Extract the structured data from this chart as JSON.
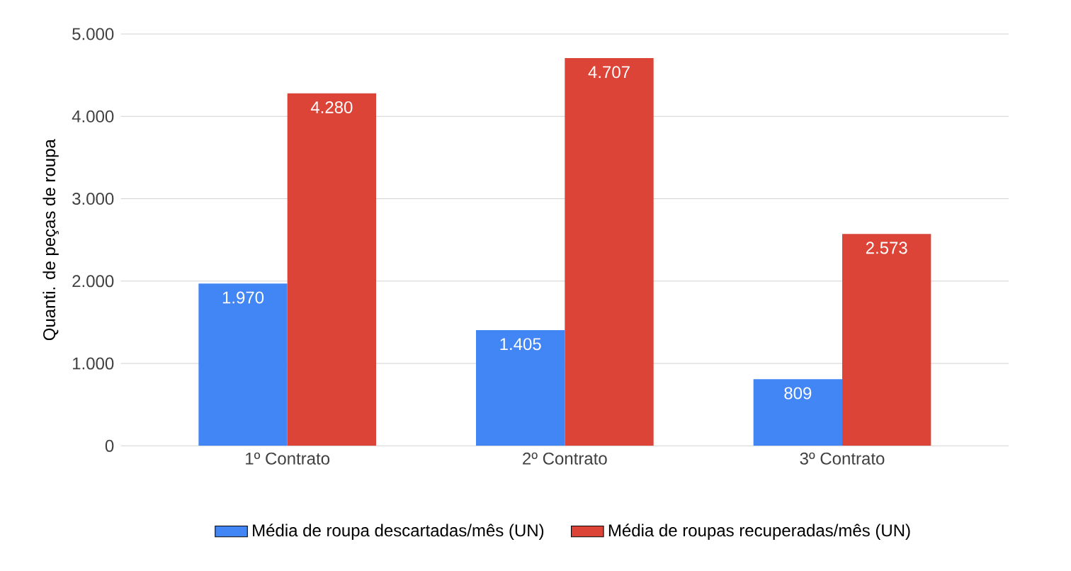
{
  "chart_data": {
    "type": "bar",
    "ylabel": "Quanti. de peças de roupa",
    "categories": [
      "1º Contrato",
      "2º Contrato",
      "3º Contrato"
    ],
    "series": [
      {
        "name": "Média de roupa descartadas/mês (UN)",
        "color": "#4285f4",
        "values": [
          1970,
          1405,
          809
        ],
        "value_labels": [
          "1.970",
          "1.405",
          "809"
        ]
      },
      {
        "name": "Média de roupas recuperadas/mês (UN)",
        "color": "#db4437",
        "values": [
          4280,
          4707,
          2573
        ],
        "value_labels": [
          "4.280",
          "4.707",
          "2.573"
        ]
      }
    ],
    "ylim": [
      0,
      5000
    ],
    "yticks": [
      0,
      {
        "value": 1000,
        "label": "1.000"
      },
      {
        "value": 2000,
        "label": "2.000"
      },
      {
        "value": 3000,
        "label": "3.000"
      },
      {
        "value": 4000,
        "label": "4.000"
      },
      {
        "value": 5000,
        "label": "5.000"
      }
    ],
    "grid": "y",
    "legend": "bottom"
  }
}
